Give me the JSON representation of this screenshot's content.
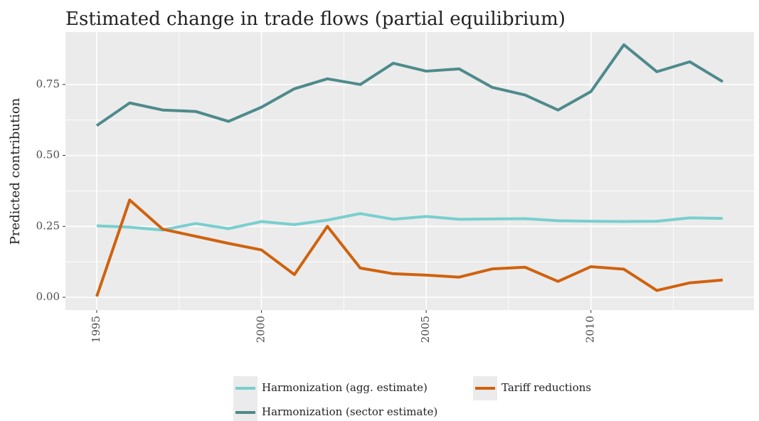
{
  "chart_data": {
    "type": "line",
    "title": "Estimated change in trade flows (partial equilibrium)",
    "y_label": "Predicted contribution",
    "x": [
      1995,
      1996,
      1997,
      1998,
      1999,
      2000,
      2001,
      2002,
      2003,
      2004,
      2005,
      2006,
      2007,
      2008,
      2009,
      2010,
      2011,
      2012,
      2013,
      2014
    ],
    "series": [
      {
        "name": "Harmonization (agg. estimate)",
        "color": "#79cfcf",
        "values": [
          0.252,
          0.247,
          0.237,
          0.26,
          0.242,
          0.267,
          0.256,
          0.272,
          0.295,
          0.275,
          0.285,
          0.275,
          0.276,
          0.277,
          0.27,
          0.268,
          0.267,
          0.268,
          0.28,
          0.278
        ]
      },
      {
        "name": "Harmonization (sector estimate)",
        "color": "#4e8a8b",
        "values": [
          0.605,
          0.685,
          0.66,
          0.655,
          0.62,
          0.67,
          0.735,
          0.77,
          0.75,
          0.825,
          0.797,
          0.805,
          0.74,
          0.713,
          0.66,
          0.725,
          0.89,
          0.795,
          0.83,
          0.76
        ]
      },
      {
        "name": "Tariff reductions",
        "color": "#d0620e",
        "values": [
          0.003,
          0.343,
          0.24,
          0.215,
          0.19,
          0.167,
          0.08,
          0.25,
          0.103,
          0.083,
          0.078,
          0.071,
          0.1,
          0.106,
          0.056,
          0.108,
          0.099,
          0.024,
          0.051,
          0.061
        ]
      }
    ],
    "xlim": [
      1994.05,
      2014.95
    ],
    "xticks": [
      1995,
      2000,
      2005,
      2010
    ],
    "ylim": [
      -0.045,
      0.935
    ],
    "yticks": [
      {
        "value": 0,
        "label": "0.00"
      },
      {
        "value": 0.25,
        "label": "0.25"
      },
      {
        "value": 0.5,
        "label": "0.50"
      },
      {
        "value": 0.75,
        "label": "0.75"
      }
    ],
    "grid": true,
    "minor_grid": true,
    "legend": "bottom"
  }
}
